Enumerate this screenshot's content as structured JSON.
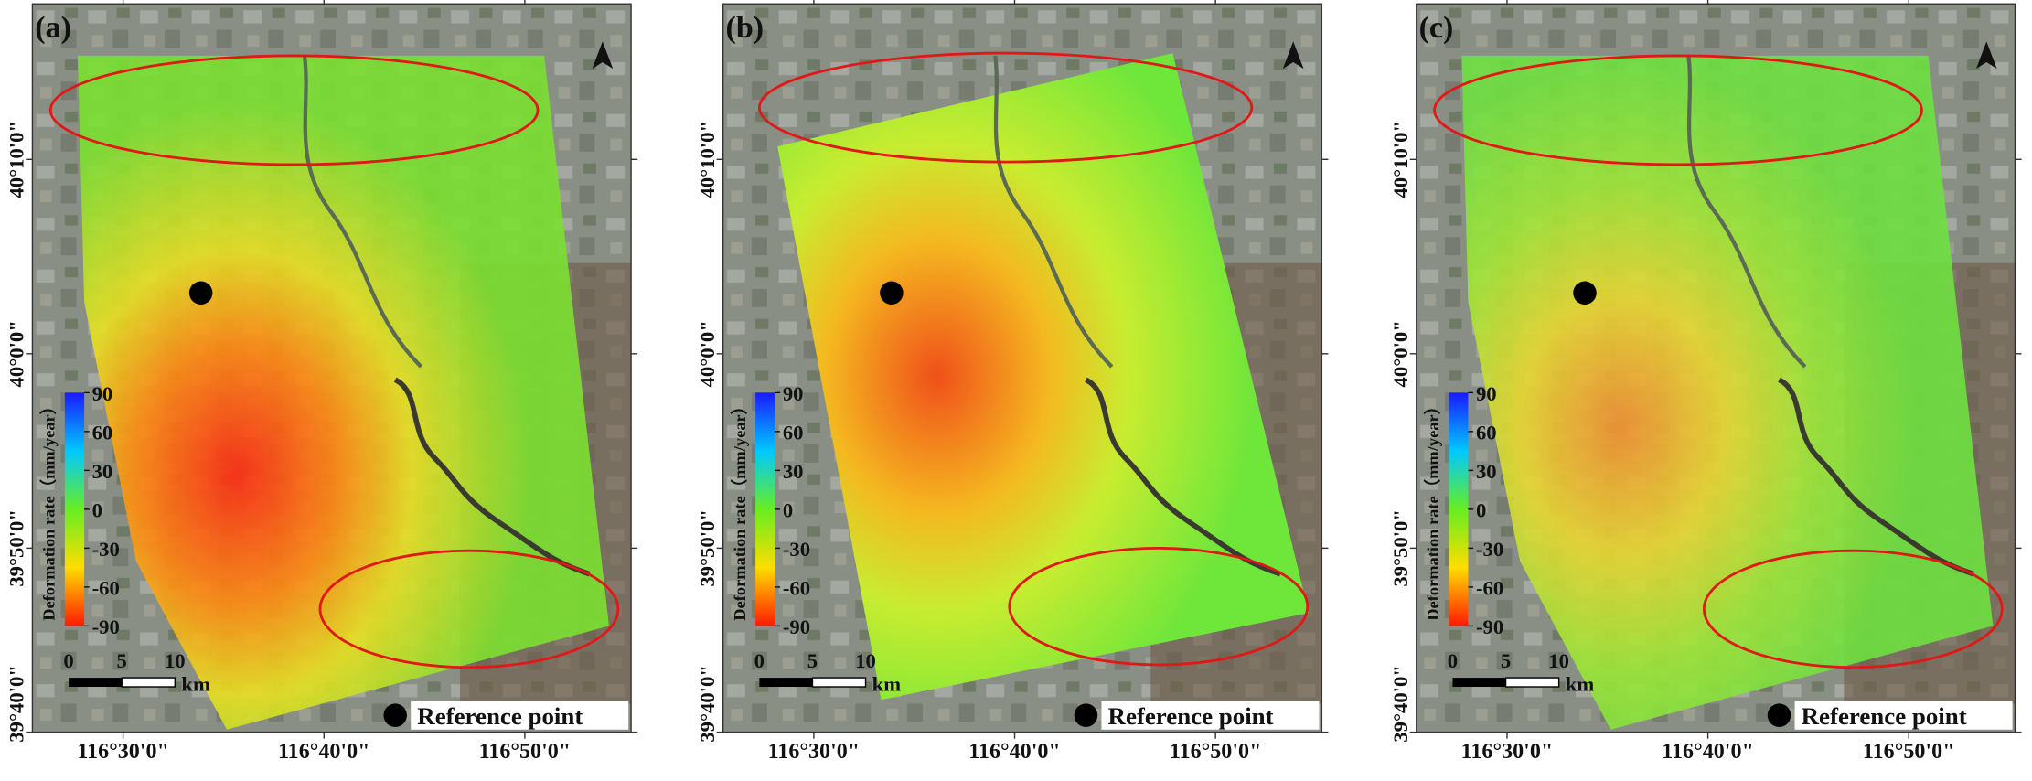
{
  "panels": [
    {
      "label": "(a)"
    },
    {
      "label": "(b)"
    },
    {
      "label": "(c)"
    }
  ],
  "lat_labels": [
    "40°10'0\"",
    "40°0'0\"",
    "39°50'0\"",
    "39°40'0\""
  ],
  "lon_labels": [
    "116°30'0\"",
    "116°40'0\"",
    "116°50'0\""
  ],
  "colorbar": {
    "title": "Deformation rate（mm/year）",
    "ticks": [
      90,
      60,
      30,
      0,
      -30,
      -60,
      -90
    ]
  },
  "scale_bar": {
    "labels": [
      0,
      5,
      10
    ],
    "unit": "km"
  },
  "legend": "Reference point"
}
